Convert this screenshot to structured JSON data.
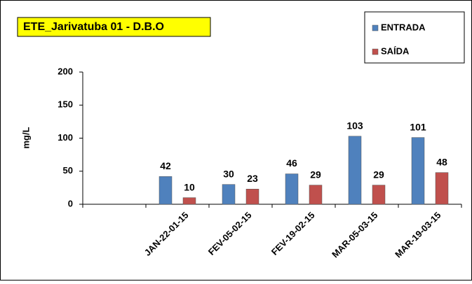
{
  "chart_data": {
    "type": "bar",
    "title": "ETE_Jarivatuba  01 - D.B.O",
    "y_label": "mg/L",
    "categories": [
      null,
      "JAN-22-01-15",
      "FEV-05-02-15",
      "FEV-19-02-15",
      "MAR-05-03-15",
      "MAR-19-03-15"
    ],
    "series": [
      {
        "name": "ENTRADA",
        "color": "#4f81bd",
        "values": [
          null,
          42,
          30,
          46,
          103,
          101
        ]
      },
      {
        "name": "SAÍDA",
        "color": "#c0504d",
        "values": [
          null,
          10,
          23,
          29,
          29,
          48
        ]
      }
    ],
    "ylim": [
      0,
      200
    ],
    "yticks": [
      0,
      50,
      100,
      150,
      200
    ],
    "legend": "top-right"
  }
}
